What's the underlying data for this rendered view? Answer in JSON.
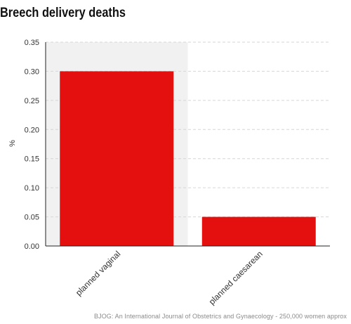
{
  "header": {
    "title": "Breech delivery deaths"
  },
  "footer": {
    "source": "BJOG: An International Journal of Obstetrics and Gynaecology - 250,000 women approx"
  },
  "colors": {
    "bar": "#e41010",
    "highlight": "#f1f1f1",
    "grid": "#d6d6d6",
    "axis": "#222222"
  },
  "chart_data": {
    "type": "bar",
    "title": "Breech delivery deaths",
    "xlabel": "",
    "ylabel": "%",
    "categories": [
      "planned vaginal",
      "planned caesarean"
    ],
    "values": [
      0.3,
      0.05
    ],
    "ylim": [
      0,
      0.35
    ],
    "yticks": [
      "0.00",
      "0.05",
      "0.10",
      "0.15",
      "0.20",
      "0.25",
      "0.30",
      "0.35"
    ],
    "grid": true,
    "highlighted_category": "planned vaginal"
  }
}
